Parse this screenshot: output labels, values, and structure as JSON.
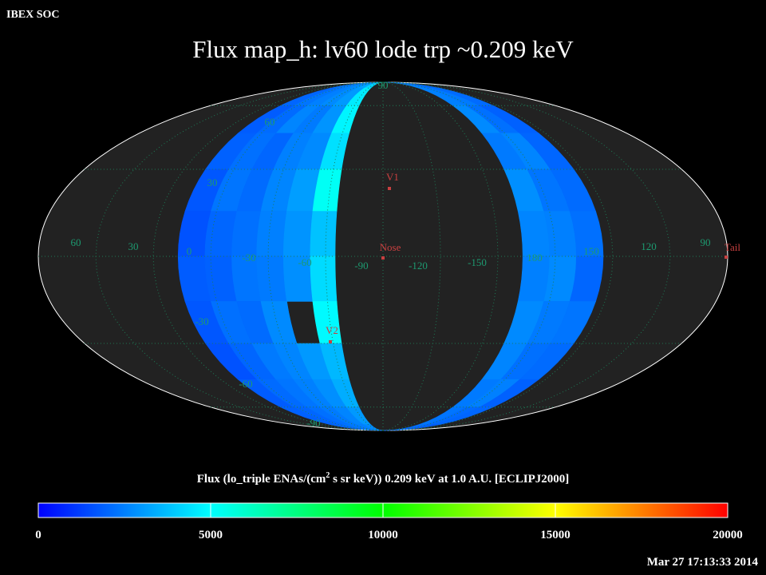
{
  "chart_data": {
    "type": "skymap",
    "header": "IBEX SOC",
    "title": "Flux   map_h: lv60 lode trp ~0.209 keV",
    "timestamp": "Mar 27 17:13:33 2014",
    "lat_labels": [
      90,
      60,
      30,
      -30,
      -60,
      -90
    ],
    "lon_labels": [
      60,
      30,
      0,
      -30,
      -60,
      -90,
      -120,
      -150,
      180,
      150,
      120,
      90
    ],
    "markers": [
      {
        "label": "V1",
        "color": "#c84040"
      },
      {
        "label": "Nose",
        "color": "#c84040"
      },
      {
        "label": "V2",
        "color": "#c84040"
      },
      {
        "label": "Tail",
        "color": "#c84040"
      }
    ],
    "lat_edges": [
      90,
      75,
      60,
      45,
      30,
      15,
      0,
      -15,
      -30,
      -45,
      -60,
      -75,
      -90
    ],
    "bands": [
      {
        "lon_edges": [
          -107,
          -93,
          -79,
          -66,
          -52,
          -38,
          -25
        ],
        "values": [
          [
            2200,
            2400,
            2600,
            2800,
            3200,
            4200
          ],
          [
            2000,
            2300,
            2500,
            2700,
            3000,
            4600
          ],
          [
            1800,
            2100,
            2600,
            2400,
            2900,
            4800
          ],
          [
            1900,
            2200,
            2000,
            2500,
            2700,
            4400
          ],
          [
            1700,
            2300,
            2100,
            2600,
            3100,
            5200
          ],
          [
            1600,
            2000,
            2200,
            2500,
            2900,
            3800
          ],
          [
            1800,
            1900,
            2300,
            2400,
            2800,
            4300
          ],
          [
            1700,
            2200,
            2100,
            2700,
            null,
            4900
          ],
          [
            1600,
            2000,
            2400,
            2600,
            3000,
            3600
          ],
          [
            1800,
            2100,
            2300,
            2500,
            2800,
            3400
          ],
          [
            1900,
            2000,
            2200,
            2400,
            2600,
            3000
          ],
          [
            2000,
            2100,
            2300,
            2400,
            2500,
            2700
          ]
        ]
      },
      {
        "lon_edges": [
          73,
          87,
          101,
          115
        ],
        "values": [
          [
            2600,
            2300,
            2000
          ],
          [
            2500,
            2400,
            2100
          ],
          [
            2700,
            2200,
            1900
          ],
          [
            2400,
            2600,
            2000
          ],
          [
            2800,
            2300,
            2100
          ],
          [
            2600,
            2500,
            2200
          ],
          [
            2500,
            2700,
            2000
          ],
          [
            2700,
            2400,
            2300
          ],
          [
            2600,
            2200,
            2100
          ],
          [
            2400,
            2500,
            1900
          ],
          [
            2300,
            2100,
            2000
          ],
          [
            2200,
            2000,
            1800
          ]
        ]
      }
    ],
    "colorbar": {
      "label_parts": [
        "Flux (lo_triple ENAs/(cm",
        "2",
        " s sr keV))  0.209 keV at 1.0 A.U. [ECLIPJ2000]"
      ],
      "lim": [
        0,
        20000
      ],
      "ticks": [
        0,
        5000,
        10000,
        15000,
        20000
      ],
      "colors": [
        "#0000ff",
        "#00ffff",
        "#00ff00",
        "#ffff00",
        "#ff0000"
      ]
    },
    "grid": true
  }
}
